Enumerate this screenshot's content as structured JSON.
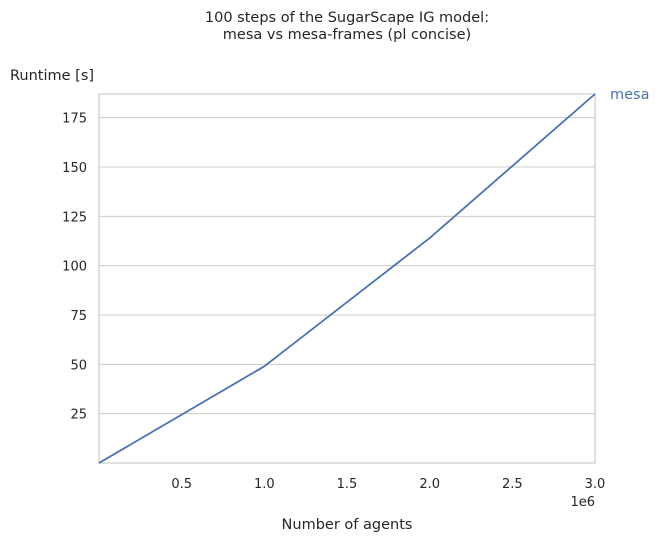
{
  "chart_data": {
    "type": "line",
    "title": [
      "100 steps of the SugarScape IG model:",
      "mesa vs mesa-frames (pl concise)"
    ],
    "xlabel": "Number of agents",
    "ylabel": "Runtime [s]",
    "x_offset_label": "1e6",
    "xlim": [
      0,
      3000000
    ],
    "ylim": [
      0,
      187
    ],
    "x_ticks": [
      500000,
      1000000,
      1500000,
      2000000,
      2500000,
      3000000
    ],
    "x_tick_labels": [
      "0.5",
      "1.0",
      "1.5",
      "2.0",
      "2.5",
      "3.0"
    ],
    "y_ticks": [
      25,
      50,
      75,
      100,
      125,
      150,
      175
    ],
    "y_tick_labels": [
      "25",
      "50",
      "75",
      "100",
      "125",
      "150",
      "175"
    ],
    "grid": "horizontal",
    "series": [
      {
        "name": "mesa",
        "color": "#4c72b0",
        "x": [
          0,
          1000000,
          2000000,
          3000000
        ],
        "y": [
          0,
          49,
          114,
          187
        ]
      }
    ]
  }
}
